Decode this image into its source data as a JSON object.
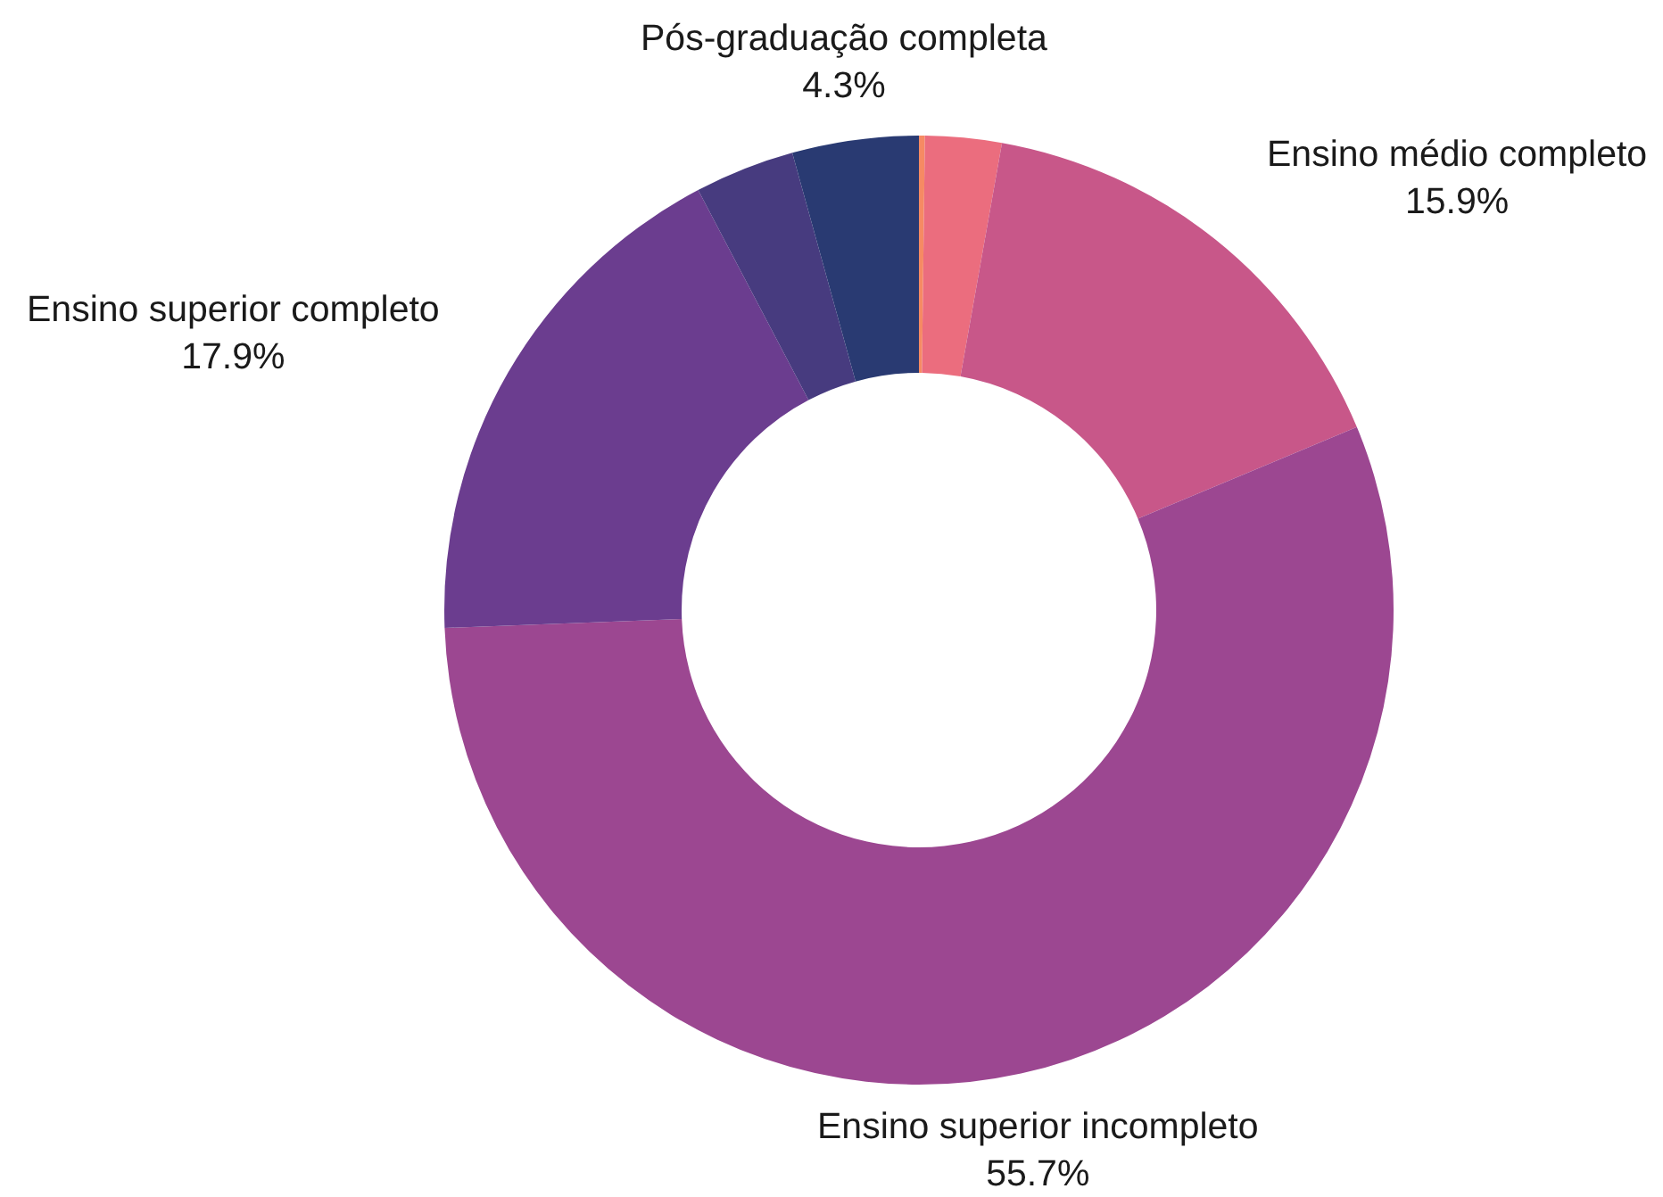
{
  "chart_data": {
    "type": "donut",
    "categories": [
      null,
      null,
      "Ensino médio completo",
      "Ensino superior incompleto",
      "Ensino superior completo",
      null,
      "Pós-graduação completa"
    ],
    "values": [
      0.2,
      2.6,
      15.9,
      55.7,
      17.9,
      3.4,
      4.3
    ],
    "colors": [
      "#f68a63",
      "#eb6d7e",
      "#c85789",
      "#9c4791",
      "#6b3d8f",
      "#473b7f",
      "#293a72"
    ],
    "value_labels": [
      null,
      null,
      "15.9%",
      "55.7%",
      "17.9%",
      null,
      "4.3%"
    ],
    "legend": false
  }
}
